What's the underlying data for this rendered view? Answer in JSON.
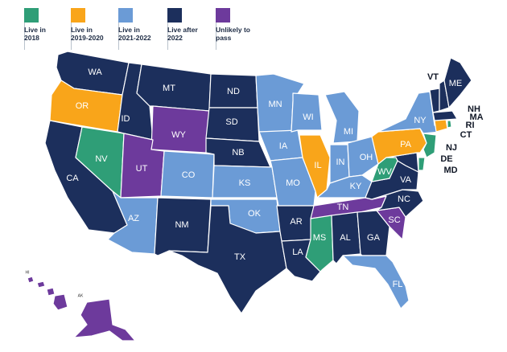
{
  "legend": [
    {
      "key": "live2018",
      "label": "Live in\n2018",
      "color": "#2f9e77"
    },
    {
      "key": "live2019",
      "label": "Live in\n2019-2020",
      "color": "#f9a51a"
    },
    {
      "key": "live2021",
      "label": "Live in\n2021-2022",
      "color": "#6b9bd6"
    },
    {
      "key": "after2022",
      "label": "Live after\n2022",
      "color": "#1c2f5c"
    },
    {
      "key": "unlikely",
      "label": "Unlikely to\npass",
      "color": "#6d3a9c"
    }
  ],
  "states": {
    "WA": {
      "label": "WA",
      "cat": "after2022"
    },
    "OR": {
      "label": "OR",
      "cat": "live2019"
    },
    "CA": {
      "label": "CA",
      "cat": "after2022"
    },
    "NV": {
      "label": "NV",
      "cat": "live2018"
    },
    "ID": {
      "label": "ID",
      "cat": "after2022"
    },
    "MT": {
      "label": "MT",
      "cat": "after2022"
    },
    "WY": {
      "label": "WY",
      "cat": "unlikely"
    },
    "UT": {
      "label": "UT",
      "cat": "unlikely"
    },
    "AZ": {
      "label": "AZ",
      "cat": "live2021"
    },
    "CO": {
      "label": "CO",
      "cat": "live2021"
    },
    "NM": {
      "label": "NM",
      "cat": "after2022"
    },
    "ND": {
      "label": "ND",
      "cat": "after2022"
    },
    "SD": {
      "label": "SD",
      "cat": "after2022"
    },
    "NB": {
      "label": "NB",
      "cat": "after2022"
    },
    "KS": {
      "label": "KS",
      "cat": "live2021"
    },
    "OK": {
      "label": "OK",
      "cat": "live2021"
    },
    "TX": {
      "label": "TX",
      "cat": "after2022"
    },
    "MN": {
      "label": "MN",
      "cat": "live2021"
    },
    "IA": {
      "label": "IA",
      "cat": "live2021"
    },
    "MO": {
      "label": "MO",
      "cat": "live2021"
    },
    "AR": {
      "label": "AR",
      "cat": "after2022"
    },
    "LA": {
      "label": "LA",
      "cat": "after2022"
    },
    "WI": {
      "label": "WI",
      "cat": "live2021"
    },
    "IL": {
      "label": "IL",
      "cat": "live2019"
    },
    "MI": {
      "label": "MI",
      "cat": "live2021"
    },
    "IN": {
      "label": "IN",
      "cat": "live2021"
    },
    "OH": {
      "label": "OH",
      "cat": "live2021"
    },
    "KY": {
      "label": "KY",
      "cat": "live2021"
    },
    "TN": {
      "label": "TN",
      "cat": "unlikely"
    },
    "MS": {
      "label": "MS",
      "cat": "live2018"
    },
    "AL": {
      "label": "AL",
      "cat": "after2022"
    },
    "GA": {
      "label": "GA",
      "cat": "after2022"
    },
    "FL": {
      "label": "FL",
      "cat": "live2021"
    },
    "SC": {
      "label": "SC",
      "cat": "unlikely"
    },
    "NC": {
      "label": "NC",
      "cat": "after2022"
    },
    "VA": {
      "label": "VA",
      "cat": "after2022"
    },
    "WV": {
      "label": "WV",
      "cat": "live2018"
    },
    "PA": {
      "label": "PA",
      "cat": "live2019"
    },
    "NY": {
      "label": "NY",
      "cat": "live2021"
    },
    "NJ": {
      "label": "NJ",
      "cat": "live2018"
    },
    "DE": {
      "label": "DE",
      "cat": "live2018"
    },
    "MD": {
      "label": "MD",
      "cat": "after2022"
    },
    "CT": {
      "label": "CT",
      "cat": "live2019"
    },
    "RI": {
      "label": "RI",
      "cat": "live2018"
    },
    "MA": {
      "label": "MA",
      "cat": "after2022"
    },
    "NH": {
      "label": "NH",
      "cat": "after2022"
    },
    "VT": {
      "label": "VT",
      "cat": "after2022"
    },
    "ME": {
      "label": "ME",
      "cat": "after2022"
    },
    "HI": {
      "label": "HI",
      "cat": "unlikely"
    },
    "AK": {
      "label": "AK",
      "cat": "unlikely"
    }
  }
}
